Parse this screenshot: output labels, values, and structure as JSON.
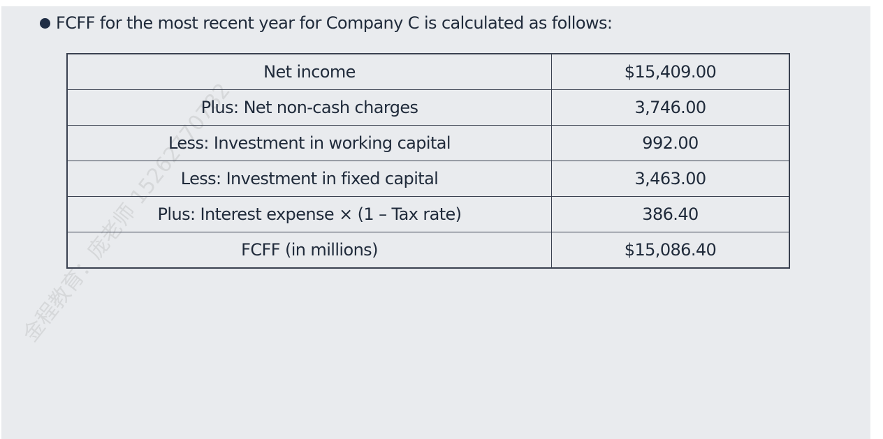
{
  "heading": "FCFF for the most recent year for Company C is calculated as follows:",
  "rows": [
    {
      "label": "Net income",
      "value": "$15,409.00"
    },
    {
      "label": "Plus: Net non-cash charges",
      "value": "3,746.00"
    },
    {
      "label": "Less: Investment in working capital",
      "value": "992.00"
    },
    {
      "label": "Less: Investment in fixed capital",
      "value": "3,463.00"
    },
    {
      "label": "Plus: Interest expense × (1 – Tax rate)",
      "value": "386.40"
    },
    {
      "label": "FCFF (in millions)",
      "value": "$15,086.40"
    }
  ],
  "watermark": "金程教育：庞老师 15262770782"
}
